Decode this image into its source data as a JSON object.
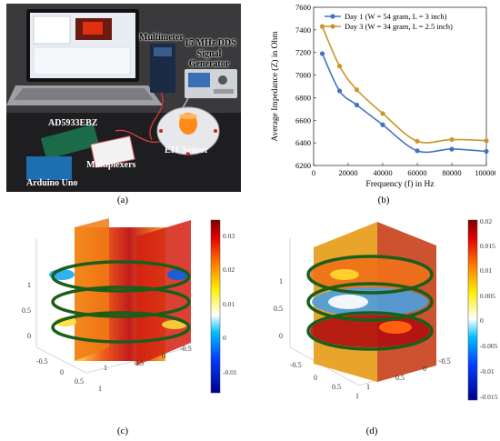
{
  "panel_a": {
    "label": "(a)",
    "annotations": {
      "multimeter": "Multimeter",
      "dds_line1": "15 MHz DDS",
      "dds_line2": "Signal Generator",
      "ad": "AD5933EBZ",
      "eit": "EIT Sensor",
      "mux": "Multiplexers",
      "arduino": "Arduino Uno"
    }
  },
  "panel_b": {
    "label": "(b)"
  },
  "panel_c": {
    "label": "(c)",
    "colorbar_ticks": [
      "0.03",
      "0.02",
      "0.01",
      "0",
      "-0.01"
    ],
    "axis_ticks": {
      "z": [
        "1",
        "0.5",
        "0"
      ],
      "x": [
        "-0.5",
        "0",
        "0.5",
        "1"
      ],
      "y": [
        "1",
        "0.5",
        "0",
        "-0.5"
      ]
    }
  },
  "panel_d": {
    "label": "(d)",
    "colorbar_ticks": [
      "0.02",
      "0.015",
      "0.01",
      "0.005",
      "0",
      "-0.005",
      "-0.01",
      "-0.015"
    ],
    "axis_ticks": {
      "z": [
        "1",
        "0.5",
        "0"
      ],
      "x": [
        "-0.5",
        "0",
        "0.5",
        "1"
      ],
      "y": [
        "1",
        "0.5",
        "0",
        "-0.5"
      ]
    }
  },
  "chart_data": {
    "type": "line",
    "xlabel": "Frequency (f) in Hz",
    "ylabel": "Average Impedance (Z) in Ohm",
    "xlim": [
      0,
      100000
    ],
    "ylim": [
      6200,
      7600
    ],
    "xticks": [
      0,
      20000,
      40000,
      60000,
      80000,
      100000
    ],
    "yticks": [
      6200,
      6400,
      6600,
      6800,
      7000,
      7200,
      7400,
      7600
    ],
    "legend_position": "top-right",
    "series": [
      {
        "name": "Day 1 (W = 54 gram, L = 3 inch)",
        "color": "#4472c4",
        "x": [
          5000,
          15000,
          25000,
          40000,
          60000,
          80000,
          100000
        ],
        "y": [
          7190,
          6860,
          6735,
          6560,
          6330,
          6345,
          6325
        ]
      },
      {
        "name": "Day 3 (W = 34 gram, L = 2.5 inch)",
        "color": "#c9962b",
        "x": [
          5000,
          15000,
          25000,
          40000,
          60000,
          80000,
          100000
        ],
        "y": [
          7430,
          7080,
          6870,
          6660,
          6415,
          6430,
          6420
        ]
      }
    ]
  }
}
